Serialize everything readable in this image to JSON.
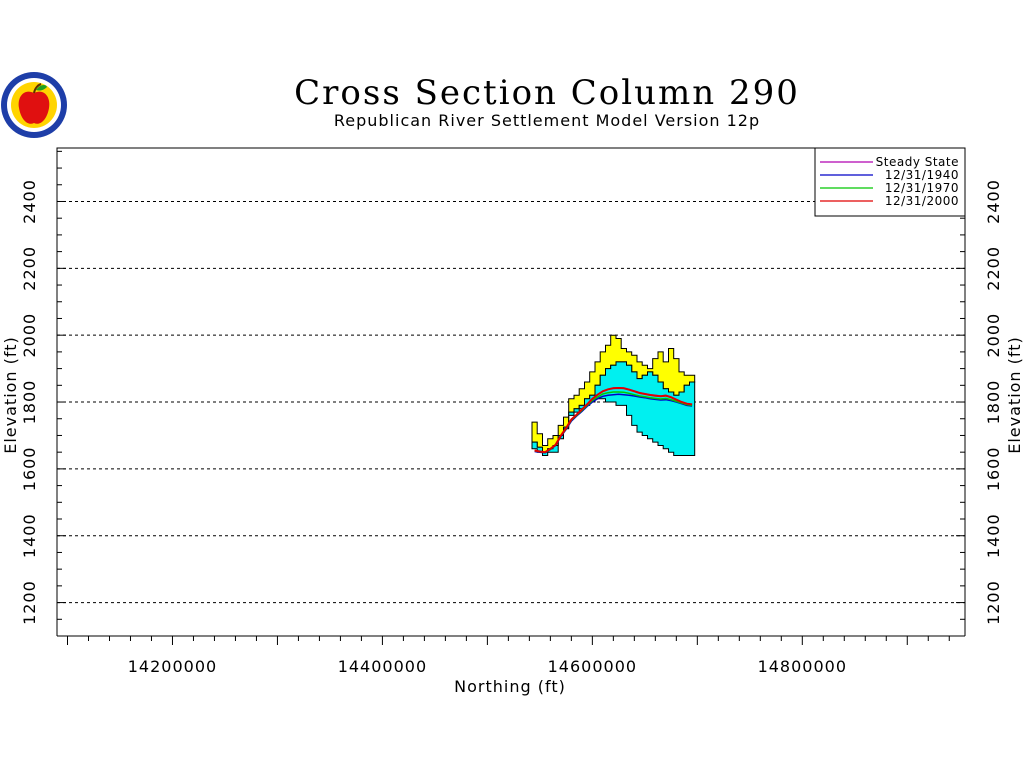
{
  "chart_data": {
    "type": "line",
    "title": "Cross Section Column 290",
    "subtitle": "Republican River Settlement Model Version 12p",
    "xlabel": "Northing (ft)",
    "ylabel": "Elevation (ft)",
    "xlim": [
      14090000,
      14955000
    ],
    "ylim": [
      1100,
      2560
    ],
    "x_ticks": [
      14200000,
      14400000,
      14600000,
      14800000
    ],
    "x_tick_labels": [
      "14200000",
      "14400000",
      "14600000",
      "14800000"
    ],
    "y_ticks": [
      1200,
      1400,
      1600,
      1800,
      2000,
      2200,
      2400
    ],
    "y_tick_labels": [
      "1200",
      "1400",
      "1600",
      "1800",
      "2000",
      "2200",
      "2400"
    ],
    "grid": true,
    "legend_position": "top-right",
    "layers": {
      "x": [
        14545000,
        14550000,
        14555000,
        14560000,
        14565000,
        14570000,
        14575000,
        14580000,
        14585000,
        14590000,
        14595000,
        14600000,
        14605000,
        14610000,
        14615000,
        14620000,
        14625000,
        14630000,
        14635000,
        14640000,
        14645000,
        14650000,
        14655000,
        14660000,
        14665000,
        14670000,
        14675000,
        14680000,
        14685000,
        14690000,
        14695000
      ],
      "land_surface": [
        1740,
        1705,
        1670,
        1690,
        1700,
        1730,
        1755,
        1810,
        1820,
        1840,
        1860,
        1890,
        1920,
        1950,
        1970,
        2000,
        1990,
        1960,
        1950,
        1940,
        1920,
        1910,
        1900,
        1930,
        1950,
        1920,
        1960,
        1930,
        1890,
        1880,
        1880
      ],
      "aquifer_top": [
        1680,
        1665,
        1650,
        1660,
        1670,
        1700,
        1725,
        1770,
        1780,
        1790,
        1810,
        1820,
        1850,
        1880,
        1900,
        1910,
        1920,
        1920,
        1910,
        1890,
        1870,
        1880,
        1890,
        1880,
        1860,
        1840,
        1830,
        1820,
        1830,
        1850,
        1860
      ],
      "aquifer_bottom": [
        1660,
        1650,
        1640,
        1650,
        1650,
        1690,
        1720,
        1760,
        1770,
        1780,
        1790,
        1800,
        1810,
        1810,
        1800,
        1800,
        1790,
        1790,
        1760,
        1730,
        1710,
        1700,
        1690,
        1680,
        1670,
        1660,
        1650,
        1640,
        1640,
        1640,
        1640
      ]
    },
    "series": [
      {
        "name": "Steady State",
        "color": "#b000b0",
        "values": [
          1655,
          1652,
          1650,
          1660,
          1672,
          1700,
          1722,
          1748,
          1762,
          1778,
          1793,
          1810,
          1822,
          1832,
          1838,
          1842,
          1843,
          1842,
          1838,
          1833,
          1828,
          1825,
          1822,
          1820,
          1818,
          1820,
          1815,
          1808,
          1800,
          1795,
          1793
        ]
      },
      {
        "name": "12/31/1940",
        "color": "#0000c8",
        "values": [
          1652,
          1650,
          1648,
          1658,
          1670,
          1697,
          1718,
          1743,
          1758,
          1772,
          1787,
          1800,
          1810,
          1817,
          1820,
          1822,
          1823,
          1822,
          1820,
          1818,
          1815,
          1813,
          1810,
          1808,
          1806,
          1807,
          1804,
          1800,
          1795,
          1790,
          1788
        ]
      },
      {
        "name": "12/31/1970",
        "color": "#00c800",
        "values": [
          1654,
          1651,
          1649,
          1659,
          1671,
          1699,
          1720,
          1746,
          1760,
          1775,
          1790,
          1805,
          1815,
          1824,
          1828,
          1830,
          1830,
          1829,
          1826,
          1822,
          1818,
          1816,
          1813,
          1811,
          1809,
          1811,
          1807,
          1802,
          1797,
          1792,
          1790
        ]
      },
      {
        "name": "12/31/2000",
        "color": "#e00000",
        "values": [
          1655,
          1652,
          1650,
          1660,
          1672,
          1700,
          1722,
          1748,
          1762,
          1778,
          1793,
          1810,
          1822,
          1832,
          1838,
          1841,
          1842,
          1841,
          1837,
          1832,
          1827,
          1824,
          1821,
          1819,
          1817,
          1819,
          1814,
          1807,
          1800,
          1795,
          1793
        ]
      }
    ],
    "colors": {
      "unsaturated": "#ffff00",
      "saturated": "#00f0f0",
      "outline": "#000000"
    }
  },
  "logo": {
    "icon": "apple-seal-icon"
  }
}
